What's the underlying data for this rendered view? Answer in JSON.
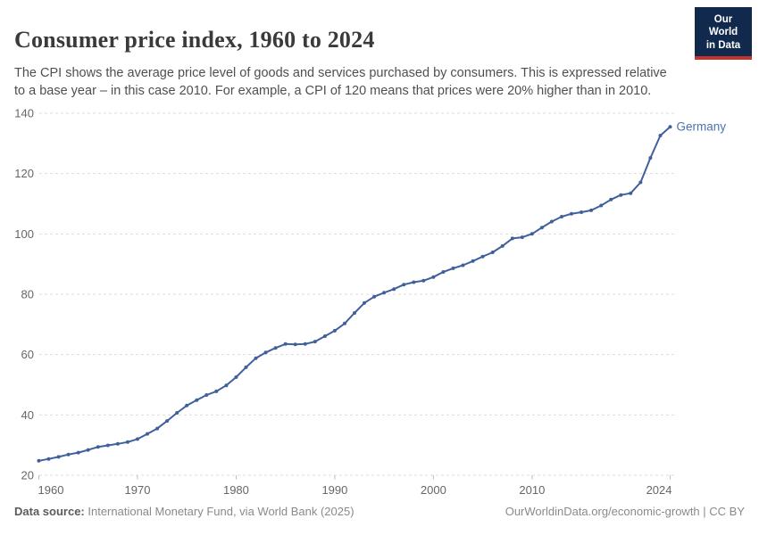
{
  "header": {
    "title": "Consumer price index, 1960 to 2024",
    "subtitle": "The CPI shows the average price level of goods and services purchased by consumers. This is expressed relative to a base year – in this case 2010. For example, a CPI of 120 means that prices were 20% higher than in 2010.",
    "logo_line1": "Our World",
    "logo_line2": "in Data",
    "logo_colors": {
      "background": "#12294e",
      "stripe": "#c5332d",
      "text": "#ffffff"
    }
  },
  "footer": {
    "source_label": "Data source:",
    "source_text": " International Monetary Fund, via World Bank (2025)",
    "rights_text": "OurWorldinData.org/economic-growth | CC BY"
  },
  "chart_data": {
    "type": "line",
    "title": "Consumer price index, 1960 to 2024",
    "xlabel": "",
    "ylabel": "",
    "xlim": [
      1960,
      2024
    ],
    "ylim": [
      20,
      140
    ],
    "x_ticks": [
      1960,
      1970,
      1980,
      1990,
      2000,
      2010,
      2024
    ],
    "y_ticks": [
      20,
      40,
      60,
      80,
      100,
      120,
      140
    ],
    "grid": "horizontal-dashed",
    "legend_position": "end-of-line-label",
    "axis_colors": {
      "tick_label": "#666666",
      "gridline": "#dddddd",
      "tick_mark": "#bbbbbb"
    },
    "series": [
      {
        "name": "Germany",
        "color": "#40609c",
        "label_color": "#4a72b5",
        "x": [
          1960,
          1961,
          1962,
          1963,
          1964,
          1965,
          1966,
          1967,
          1968,
          1969,
          1970,
          1971,
          1972,
          1973,
          1974,
          1975,
          1976,
          1977,
          1978,
          1979,
          1980,
          1981,
          1982,
          1983,
          1984,
          1985,
          1986,
          1987,
          1988,
          1989,
          1990,
          1991,
          1992,
          1993,
          1994,
          1995,
          1996,
          1997,
          1998,
          1999,
          2000,
          2001,
          2002,
          2003,
          2004,
          2005,
          2006,
          2007,
          2008,
          2009,
          2010,
          2011,
          2012,
          2013,
          2014,
          2015,
          2016,
          2017,
          2018,
          2019,
          2020,
          2021,
          2022,
          2023,
          2024
        ],
        "values": [
          24.8,
          25.4,
          26.1,
          26.9,
          27.5,
          28.4,
          29.4,
          29.9,
          30.4,
          31.0,
          32.0,
          33.7,
          35.5,
          38.0,
          40.7,
          43.1,
          44.9,
          46.6,
          47.8,
          49.8,
          52.5,
          55.8,
          58.8,
          60.7,
          62.2,
          63.5,
          63.4,
          63.5,
          64.3,
          66.1,
          67.9,
          70.3,
          73.8,
          77.1,
          79.2,
          80.5,
          81.7,
          83.2,
          84.0,
          84.5,
          85.7,
          87.4,
          88.6,
          89.6,
          91.0,
          92.5,
          93.9,
          96.0,
          98.5,
          98.9,
          100.0,
          102.1,
          104.1,
          105.7,
          106.7,
          107.2,
          107.8,
          109.4,
          111.4,
          112.9,
          113.5,
          117.1,
          125.2,
          132.6,
          135.5
        ]
      }
    ]
  }
}
